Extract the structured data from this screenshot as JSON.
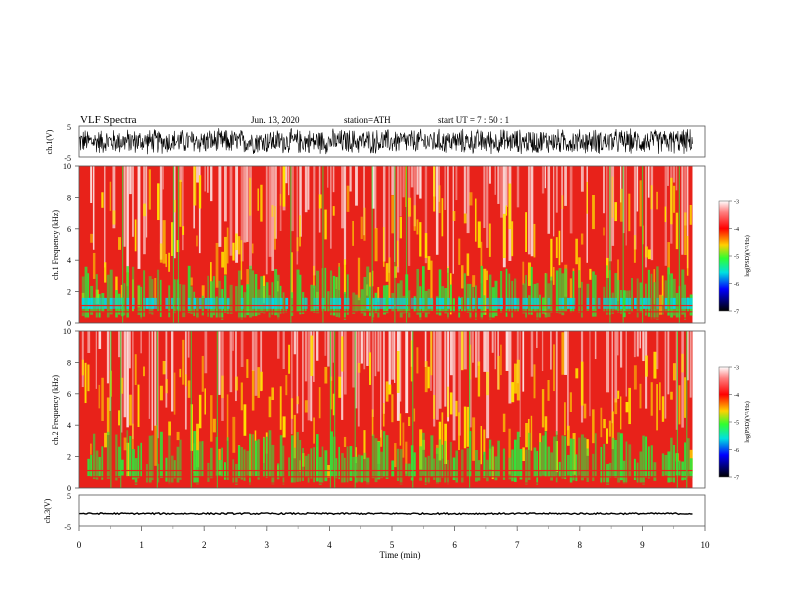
{
  "header": {
    "title": "VLF  Spectra",
    "date": "Jun. 13, 2020",
    "station": "station=ATH",
    "start": "start  UT  =    7  : 50 : 1"
  },
  "colors": {
    "spectrogram_base": "#e8221a",
    "spectrogram_mid": "#ffe000",
    "spectrogram_low": "#33e23a",
    "spectrogram_floor": "#00d8e8",
    "trace": "#000000"
  },
  "chart_data": [
    {
      "type": "line",
      "panel": "ch1-waveform",
      "ylabel": "ch.1(V)",
      "ylim": [
        -5,
        5
      ],
      "yticks": [
        "5",
        "-5"
      ],
      "description_values": {
        "x_range_min": [
          0,
          9.8
        ],
        "amplitude_envelope_V": 4.5
      }
    },
    {
      "type": "heatmap",
      "panel": "ch1-spectrogram",
      "ylabel": "ch.1 Frequency  (kHz)",
      "ylim": [
        0,
        10
      ],
      "yticks": [
        "0",
        "2",
        "4",
        "6",
        "8",
        "10"
      ],
      "x_extent_min": [
        0,
        9.8
      ],
      "colorbar": {
        "label": "log(PSD)(V²/Hz)",
        "range": [
          -7,
          -3
        ],
        "ticks": [
          "-3",
          "-4",
          "-5",
          "-6",
          "-7"
        ]
      }
    },
    {
      "type": "heatmap",
      "panel": "ch2-spectrogram",
      "ylabel": "ch.2 Frequency  (kHz)",
      "ylim": [
        0,
        10
      ],
      "yticks": [
        "0",
        "2",
        "4",
        "6",
        "8",
        "10"
      ],
      "x_extent_min": [
        0,
        9.8
      ],
      "colorbar": {
        "label": "log(PSD)(V²/Hz)",
        "range": [
          -7,
          -3
        ],
        "ticks": [
          "-3",
          "-4",
          "-5",
          "-6",
          "-7"
        ]
      }
    },
    {
      "type": "line",
      "panel": "ch3-waveform",
      "ylabel": "ch.3(V)",
      "ylim": [
        -5,
        5
      ],
      "yticks": [
        "5",
        "-5"
      ],
      "description_values": {
        "level_V": -1.0
      }
    }
  ],
  "xaxis": {
    "label": "Time  (min)",
    "range": [
      0,
      10
    ],
    "ticks": [
      "0",
      "1",
      "2",
      "3",
      "4",
      "5",
      "6",
      "7",
      "8",
      "9",
      "10"
    ]
  }
}
